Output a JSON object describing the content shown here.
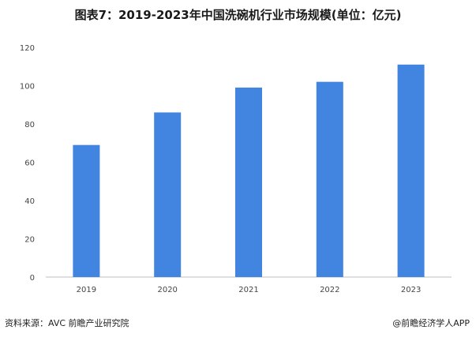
{
  "chart_data": {
    "type": "bar",
    "title": "图表7：2019-2023年中国洗碗机行业市场规模(单位：亿元)",
    "categories": [
      "2019",
      "2020",
      "2021",
      "2022",
      "2023"
    ],
    "values": [
      69,
      86,
      99,
      102,
      111
    ],
    "xlabel": "",
    "ylabel": "",
    "ylim": [
      0,
      120
    ],
    "yticks": [
      0,
      20,
      40,
      60,
      80,
      100,
      120
    ],
    "bar_color": "#4285E0",
    "grid": false,
    "legend": "none"
  },
  "footer": {
    "source": "资料来源：AVC 前瞻产业研究院",
    "credit": "@前瞻经济学人APP"
  }
}
